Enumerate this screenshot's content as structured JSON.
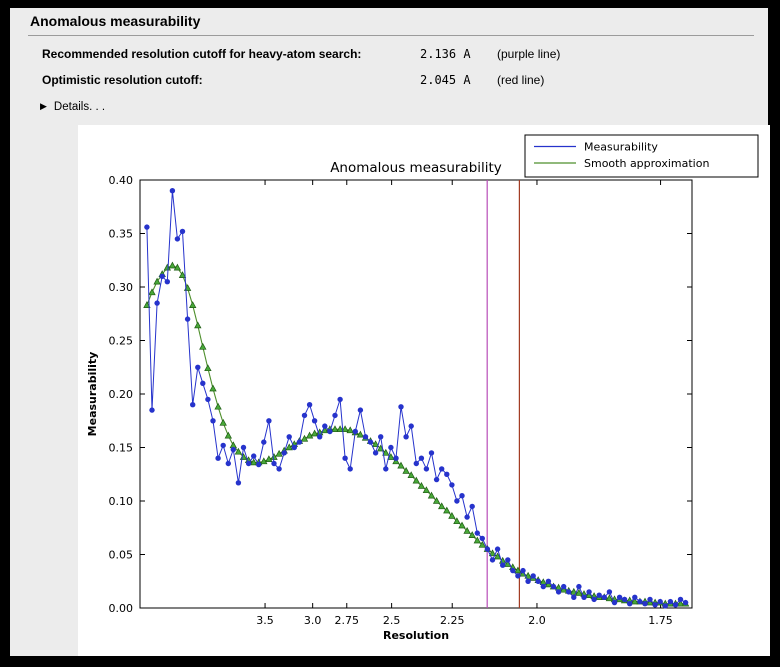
{
  "window": {
    "title": "Anomalous measurability"
  },
  "info": {
    "rows": [
      {
        "label": "Recommended resolution cutoff for heavy-atom search:",
        "value": "2.136 A",
        "note": "(purple line)"
      },
      {
        "label": "Optimistic resolution cutoff:",
        "value": "2.045 A",
        "note": "(red line)"
      }
    ],
    "details_label": "Details. . ."
  },
  "chart_data": {
    "type": "line",
    "title": "Anomalous measurability",
    "xlabel": "Resolution",
    "ylabel": "Measurability",
    "x_axis": {
      "scale": "1/d^2 (d = resolution in Angstrom), high resolution to the right",
      "tick_labels": [
        "3.5",
        "3.0",
        "2.75",
        "2.5",
        "2.25",
        "2.0",
        "1.75"
      ],
      "range_s": [
        0.0042,
        0.346
      ],
      "d_first_A": 10.8,
      "d_last_A": 1.71
    },
    "y_axis": {
      "tick_labels": [
        "0.00",
        "0.05",
        "0.10",
        "0.15",
        "0.20",
        "0.25",
        "0.30",
        "0.35",
        "0.40"
      ],
      "range": [
        0.0,
        0.4
      ]
    },
    "points_s_start": 0.0085,
    "points_s_step": 0.0031467,
    "series": [
      {
        "name": "Measurability",
        "color": "#2633cc",
        "marker": "circle",
        "values": [
          0.356,
          0.185,
          0.285,
          0.31,
          0.305,
          0.39,
          0.345,
          0.352,
          0.27,
          0.19,
          0.225,
          0.21,
          0.195,
          0.175,
          0.14,
          0.152,
          0.135,
          0.148,
          0.117,
          0.15,
          0.135,
          0.142,
          0.134,
          0.155,
          0.175,
          0.135,
          0.13,
          0.145,
          0.16,
          0.15,
          0.155,
          0.18,
          0.19,
          0.175,
          0.16,
          0.17,
          0.165,
          0.18,
          0.195,
          0.14,
          0.13,
          0.165,
          0.185,
          0.16,
          0.155,
          0.145,
          0.16,
          0.13,
          0.15,
          0.14,
          0.188,
          0.16,
          0.17,
          0.135,
          0.14,
          0.13,
          0.145,
          0.12,
          0.13,
          0.125,
          0.115,
          0.1,
          0.105,
          0.085,
          0.095,
          0.07,
          0.065,
          0.055,
          0.045,
          0.055,
          0.04,
          0.045,
          0.035,
          0.03,
          0.035,
          0.025,
          0.03,
          0.025,
          0.02,
          0.025,
          0.02,
          0.015,
          0.02,
          0.015,
          0.01,
          0.02,
          0.01,
          0.015,
          0.008,
          0.012,
          0.01,
          0.015,
          0.005,
          0.01,
          0.008,
          0.004,
          0.01,
          0.006,
          0.004,
          0.008,
          0.003,
          0.006,
          0.002,
          0.006,
          0.003,
          0.008,
          0.005
        ]
      },
      {
        "name": "Smooth approximation",
        "color": "#4e8f2c",
        "marker": "triangle",
        "marker_fill": "#48a838",
        "marker_edge": "#1f5c14",
        "values": [
          0.283,
          0.295,
          0.305,
          0.312,
          0.318,
          0.32,
          0.318,
          0.311,
          0.299,
          0.283,
          0.264,
          0.244,
          0.224,
          0.205,
          0.188,
          0.173,
          0.161,
          0.152,
          0.146,
          0.141,
          0.138,
          0.136,
          0.136,
          0.137,
          0.139,
          0.141,
          0.144,
          0.147,
          0.15,
          0.153,
          0.156,
          0.158,
          0.161,
          0.163,
          0.164,
          0.166,
          0.167,
          0.167,
          0.167,
          0.167,
          0.166,
          0.164,
          0.162,
          0.159,
          0.156,
          0.153,
          0.149,
          0.145,
          0.141,
          0.137,
          0.133,
          0.128,
          0.124,
          0.119,
          0.114,
          0.11,
          0.105,
          0.1,
          0.095,
          0.091,
          0.086,
          0.081,
          0.077,
          0.072,
          0.068,
          0.063,
          0.059,
          0.055,
          0.051,
          0.048,
          0.044,
          0.041,
          0.038,
          0.035,
          0.032,
          0.03,
          0.028,
          0.026,
          0.024,
          0.022,
          0.02,
          0.019,
          0.017,
          0.016,
          0.015,
          0.014,
          0.013,
          0.012,
          0.011,
          0.01,
          0.01,
          0.009,
          0.008,
          0.008,
          0.007,
          0.007,
          0.006,
          0.006,
          0.006,
          0.005,
          0.005,
          0.005,
          0.004,
          0.004,
          0.004,
          0.004,
          0.004
        ]
      }
    ],
    "vlines": [
      {
        "resolution_A": 2.136,
        "color": "#b84db8",
        "name": "purple line"
      },
      {
        "resolution_A": 2.045,
        "color": "#a23b22",
        "name": "red line"
      }
    ],
    "legend": {
      "position": "top-right",
      "entries": [
        "Measurability",
        "Smooth approximation"
      ]
    }
  }
}
